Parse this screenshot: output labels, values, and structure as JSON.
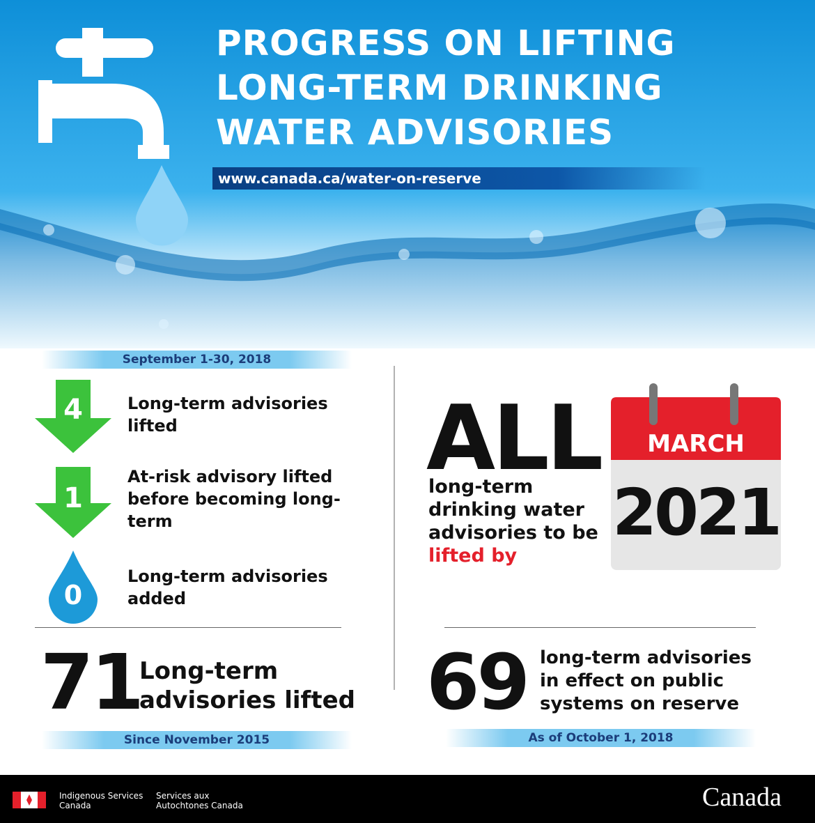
{
  "header": {
    "title_lines": [
      "PROGRESS ON LIFTING",
      "LONG-TERM DRINKING",
      "WATER ADVISORIES"
    ],
    "url": "www.canada.ca/water-on-reserve"
  },
  "monthly": {
    "period": "September 1-30, 2018",
    "items": [
      {
        "number": 4,
        "text": "Long-term advisories lifted"
      },
      {
        "number": 1,
        "text": "At-risk advisory lifted before becoming long-term"
      },
      {
        "number": 0,
        "text": "Long-term advisories added"
      }
    ]
  },
  "total": {
    "number": 71,
    "text": "Long-term advisories lifted",
    "note": "Since November 2015"
  },
  "goal": {
    "headline": "ALL",
    "text": "long-term drinking water advisories to be",
    "highlight": "lifted by",
    "month": "MARCH",
    "year": 2021
  },
  "current": {
    "number": 69,
    "text": "long-term advisories in effect on public systems on reserve",
    "note": "As of October 1, 2018"
  },
  "footer": {
    "department_en": "Indigenous Services Canada",
    "department_fr": "Services aux Autochtones Canada",
    "wordmark": "Canada"
  }
}
